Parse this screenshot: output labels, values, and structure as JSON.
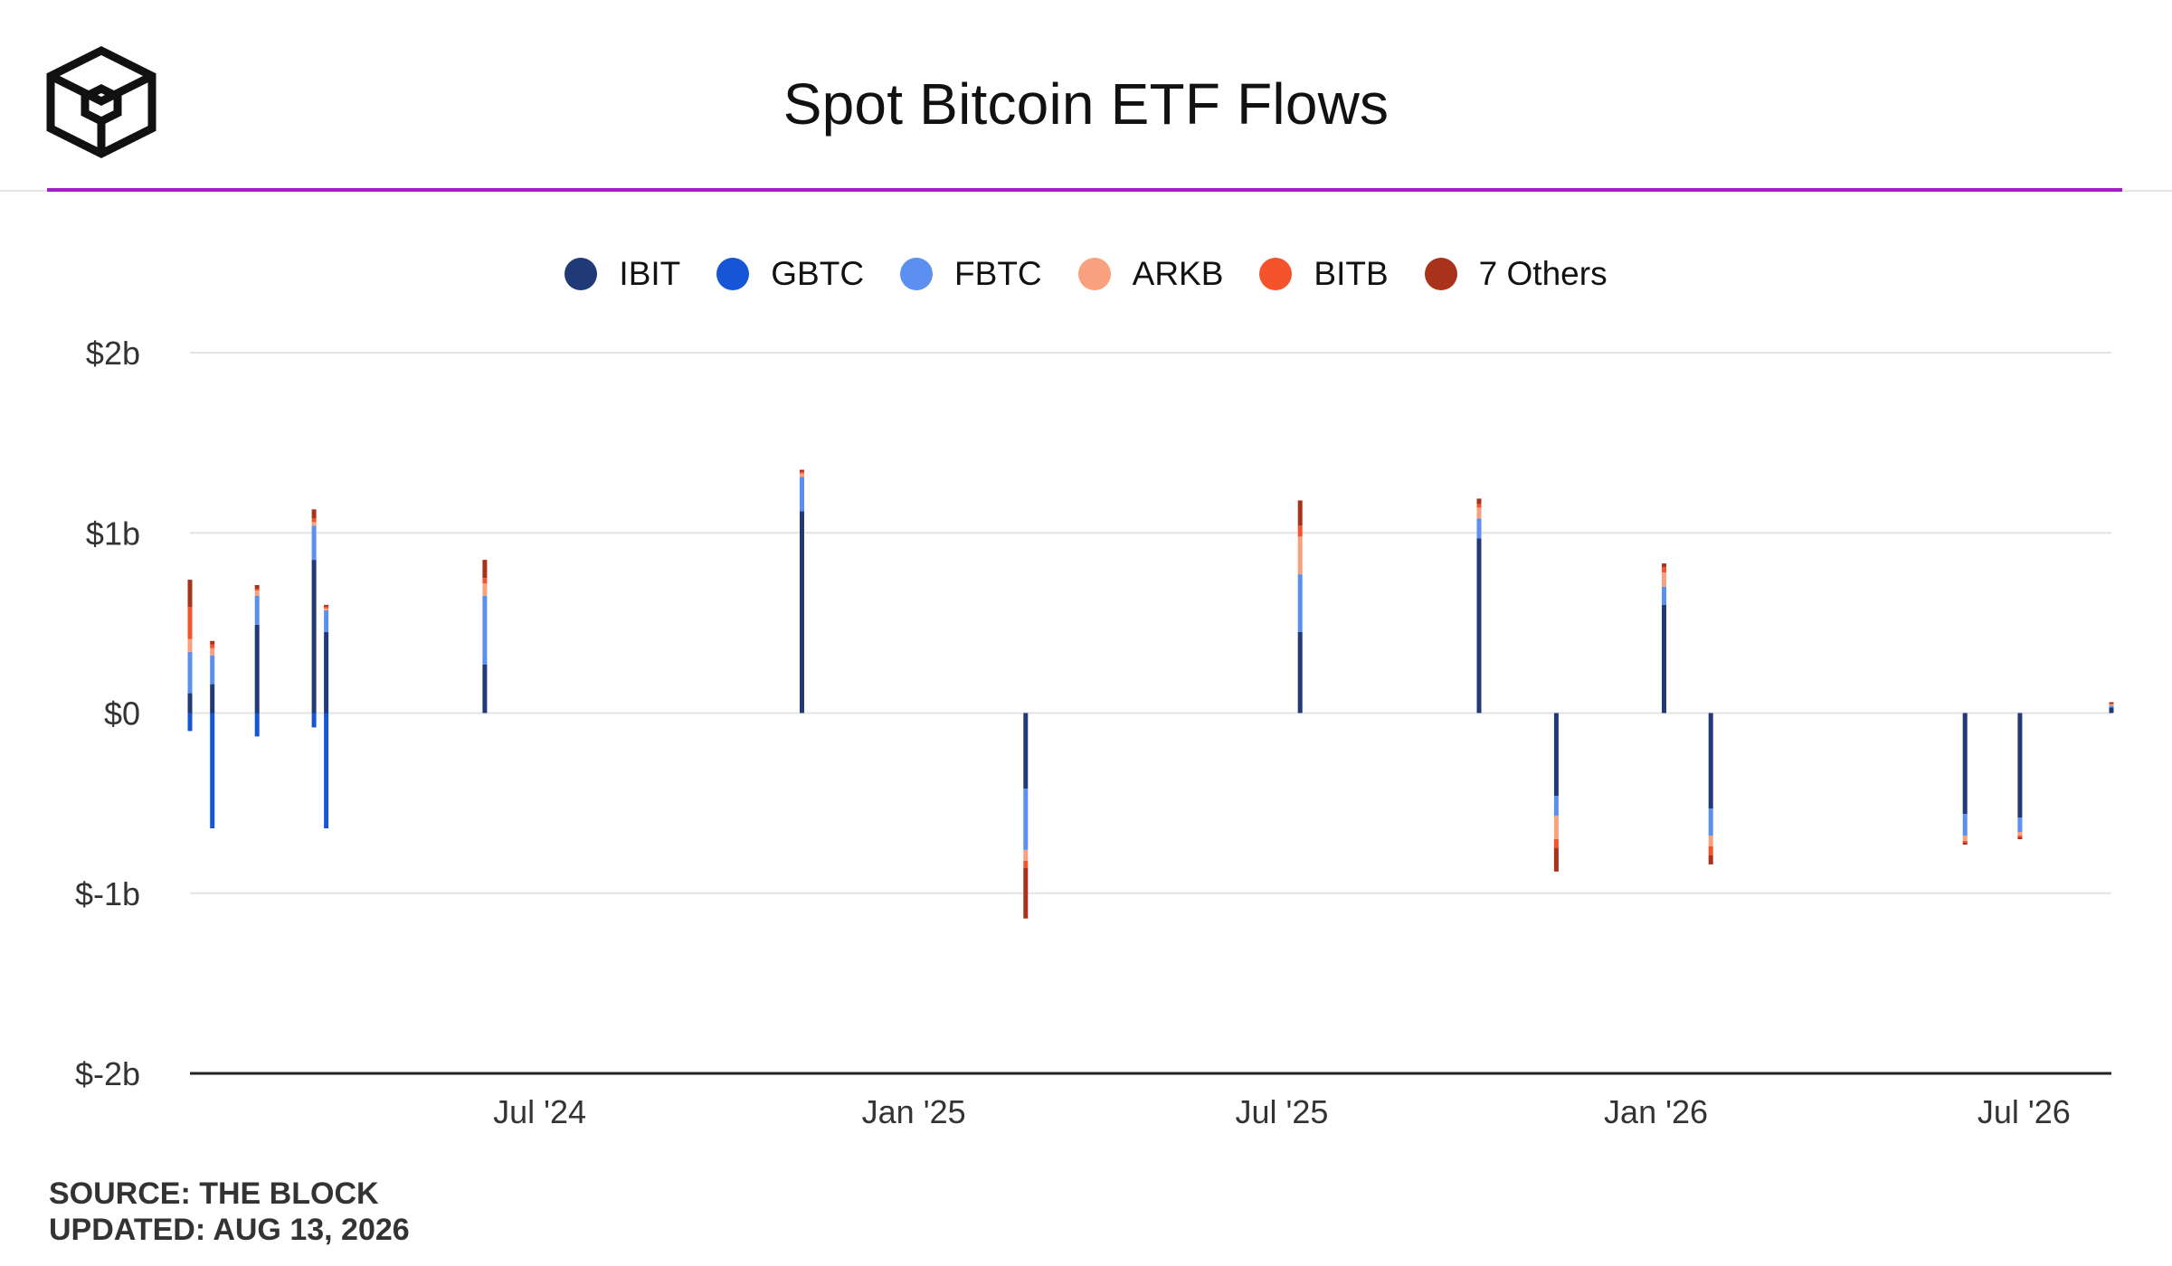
{
  "header": {
    "title": "Spot Bitcoin ETF Flows",
    "accent_color": "#a020c8",
    "logo_icon": "the-block-cube-logo-icon"
  },
  "legend": [
    {
      "label": "IBIT",
      "color": "#1f3a77"
    },
    {
      "label": "GBTC",
      "color": "#1656d6"
    },
    {
      "label": "FBTC",
      "color": "#5b8ff0"
    },
    {
      "label": "ARKB",
      "color": "#f9a07f"
    },
    {
      "label": "BITB",
      "color": "#f4532b"
    },
    {
      "label": "7 Others",
      "color": "#a8321a"
    }
  ],
  "footer": {
    "source": "SOURCE: THE BLOCK",
    "updated": "UPDATED: AUG 13, 2026"
  },
  "chart_data": {
    "type": "bar",
    "stacked": true,
    "title": "Spot Bitcoin ETF Flows",
    "ylabel": "",
    "xlabel": "",
    "ylim": [
      -2,
      2
    ],
    "y_unit": "billion USD",
    "y_ticks": [
      2,
      1,
      0,
      -1,
      -2
    ],
    "y_tick_labels": [
      "$2b",
      "$1b",
      "$0",
      "$-1b",
      "$-2b"
    ],
    "x_range": [
      "2024-01-11",
      "2026-08-13"
    ],
    "x_ticks": [
      "2024-07-01",
      "2025-01-01",
      "2025-07-01",
      "2026-01-01",
      "2026-07-01"
    ],
    "x_tick_labels": [
      "Jul '24",
      "Jan '25",
      "Jul '25",
      "Jan '26",
      "Jul '26"
    ],
    "grid": true,
    "legend_position": "top-center",
    "series_order": [
      "IBIT",
      "GBTC",
      "FBTC",
      "ARKB",
      "BITB",
      "7 Others"
    ],
    "approximate_daily_net_flows": [
      {
        "date": "2024-01-11",
        "IBIT": 0.11,
        "GBTC": -0.1,
        "FBTC": 0.23,
        "ARKB": 0.07,
        "BITB": 0.18,
        "7 Others": 0.15
      },
      {
        "date": "2024-01-22",
        "IBIT": 0.16,
        "GBTC": -0.64,
        "FBTC": 0.16,
        "ARKB": 0.04,
        "BITB": 0.02,
        "7 Others": 0.02
      },
      {
        "date": "2024-02-13",
        "IBIT": 0.49,
        "GBTC": -0.13,
        "FBTC": 0.16,
        "ARKB": 0.03,
        "BITB": 0.01,
        "7 Others": 0.02
      },
      {
        "date": "2024-03-12",
        "IBIT": 0.85,
        "GBTC": -0.08,
        "FBTC": 0.19,
        "ARKB": 0.02,
        "BITB": 0.02,
        "7 Others": 0.05
      },
      {
        "date": "2024-03-18",
        "IBIT": 0.45,
        "GBTC": -0.64,
        "FBTC": 0.12,
        "ARKB": 0.01,
        "BITB": 0.01,
        "7 Others": 0.01
      },
      {
        "date": "2024-06-04",
        "IBIT": 0.27,
        "GBTC": 0.0,
        "FBTC": 0.38,
        "ARKB": 0.07,
        "BITB": 0.03,
        "7 Others": 0.1
      },
      {
        "date": "2024-11-07",
        "IBIT": 1.12,
        "GBTC": 0.0,
        "FBTC": 0.19,
        "ARKB": 0.02,
        "BITB": 0.01,
        "7 Others": 0.01
      },
      {
        "date": "2025-02-25",
        "IBIT": -0.42,
        "GBTC": 0.0,
        "FBTC": -0.34,
        "ARKB": -0.06,
        "BITB": -0.04,
        "7 Others": -0.28
      },
      {
        "date": "2025-07-10",
        "IBIT": 0.45,
        "GBTC": 0.0,
        "FBTC": 0.32,
        "ARKB": 0.21,
        "BITB": 0.06,
        "7 Others": 0.14
      },
      {
        "date": "2025-10-06",
        "IBIT": 0.97,
        "GBTC": 0.0,
        "FBTC": 0.11,
        "ARKB": 0.06,
        "BITB": 0.02,
        "7 Others": 0.03
      },
      {
        "date": "2025-11-13",
        "IBIT": -0.46,
        "GBTC": 0.0,
        "FBTC": -0.11,
        "ARKB": -0.13,
        "BITB": -0.05,
        "7 Others": -0.13
      },
      {
        "date": "2026-01-05",
        "IBIT": 0.6,
        "GBTC": 0.0,
        "FBTC": 0.1,
        "ARKB": 0.08,
        "BITB": 0.03,
        "7 Others": 0.02
      },
      {
        "date": "2026-01-28",
        "IBIT": -0.53,
        "GBTC": 0.0,
        "FBTC": -0.15,
        "ARKB": -0.06,
        "BITB": -0.05,
        "7 Others": -0.05
      },
      {
        "date": "2026-06-02",
        "IBIT": -0.56,
        "GBTC": 0.0,
        "FBTC": -0.12,
        "ARKB": -0.03,
        "BITB": -0.01,
        "7 Others": -0.01
      },
      {
        "date": "2026-06-29",
        "IBIT": -0.58,
        "GBTC": 0.0,
        "FBTC": -0.08,
        "ARKB": -0.02,
        "BITB": -0.01,
        "7 Others": -0.01
      },
      {
        "date": "2026-08-13",
        "IBIT": 0.03,
        "GBTC": 0.0,
        "FBTC": 0.01,
        "ARKB": 0.01,
        "BITB": 0.0,
        "7 Others": 0.01
      }
    ]
  }
}
